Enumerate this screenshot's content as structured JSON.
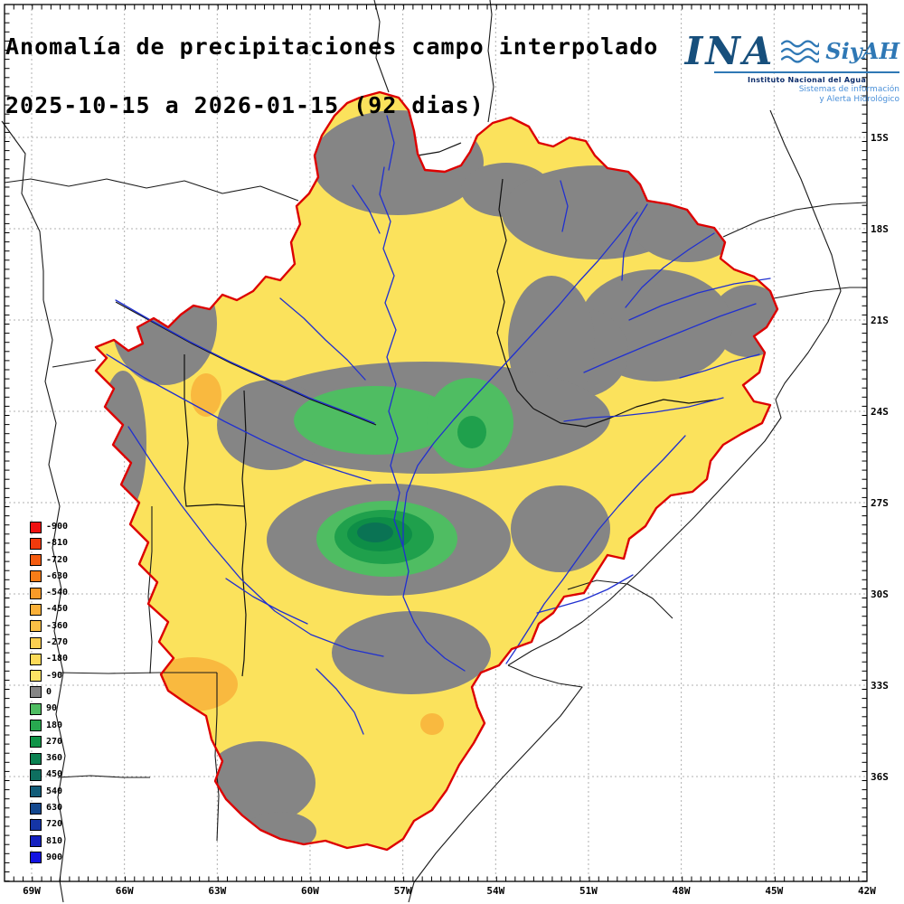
{
  "title": {
    "line1": "Anomalía de precipitaciones campo interpolado",
    "line2": "2025-10-15 a 2026-01-15 (92 dias)"
  },
  "logo": {
    "ina": "INA",
    "siyah": "SiyAH",
    "institute": "Instituto Nacional del Agua",
    "sub1": "Sistemas de información",
    "sub2": "y Alerta Hidrológico"
  },
  "axes": {
    "x_ticks": [
      "69W",
      "66W",
      "63W",
      "60W",
      "57W",
      "54W",
      "51W",
      "48W",
      "45W",
      "42W"
    ],
    "y_ticks": [
      "15S",
      "18S",
      "21S",
      "24S",
      "27S",
      "30S",
      "33S",
      "36S"
    ]
  },
  "legend": {
    "values": [
      "-900",
      "-810",
      "-720",
      "-630",
      "-540",
      "-450",
      "-360",
      "-270",
      "-180",
      "-90",
      "0",
      "90",
      "180",
      "270",
      "360",
      "450",
      "540",
      "630",
      "720",
      "810",
      "900"
    ],
    "colors": [
      "#ef1010",
      "#f23a0c",
      "#f55c10",
      "#f67d18",
      "#f89a28",
      "#fab038",
      "#fbc146",
      "#fccf50",
      "#fcda58",
      "#fbe465",
      "#858585",
      "#4fbd62",
      "#28a950",
      "#109448",
      "#0b8151",
      "#0e6f60",
      "#125d79",
      "#14488e",
      "#1535a6",
      "#1522c0",
      "#1212e0"
    ]
  },
  "colors": {
    "basin_outline": "#dd0000",
    "river": "#2030d0",
    "border": "#111111",
    "grid": "#b0b0b0",
    "map_yellow": "#fbe25c",
    "map_gray": "#858585",
    "map_green_light": "#4fbd62",
    "map_green": "#1fa04c",
    "map_green_dark": "#0e8e47",
    "map_teal": "#0a7354",
    "map_orange": "#f9b93f",
    "logo_blue_dark": "#174f7c",
    "logo_blue": "#2f78b5",
    "logo_navy": "#0d2d6b",
    "logo_light_blue": "#4a90d9"
  },
  "chart_data": {
    "type": "heatmap",
    "title": "Anomalía de precipitaciones campo interpolado",
    "subtitle": "2025-10-15 a 2026-01-15 (92 dias)",
    "x_ticks": [
      "69W",
      "66W",
      "63W",
      "60W",
      "57W",
      "54W",
      "51W",
      "48W",
      "45W",
      "42W"
    ],
    "y_ticks": [
      "15S",
      "18S",
      "21S",
      "24S",
      "27S",
      "30S",
      "33S",
      "36S"
    ],
    "levels": [
      -900,
      -810,
      -720,
      -630,
      -540,
      -450,
      -360,
      -270,
      -180,
      -90,
      0,
      90,
      180,
      270,
      360,
      450,
      540,
      630,
      720,
      810,
      900
    ],
    "level_colors": [
      "#ef1010",
      "#f23a0c",
      "#f55c10",
      "#f67d18",
      "#f89a28",
      "#fab038",
      "#fbc146",
      "#fccf50",
      "#fcda58",
      "#fbe465",
      "#858585",
      "#4fbd62",
      "#28a950",
      "#109448",
      "#0b8151",
      "#0e6f60",
      "#125d79",
      "#14488e",
      "#1535a6",
      "#1522c0",
      "#1212e0"
    ],
    "regions": [
      {
        "anomaly": "-180 a -90",
        "color": "#fbe25c",
        "extent": "la mayor parte de la cuenca"
      },
      {
        "anomaly": "-90 a 0",
        "color": "#858585",
        "extent": "norte, franja central cerca de 24S, este y parches del sur"
      },
      {
        "anomaly": "0 a 180",
        "color": "#4fbd62",
        "extent": "franja cerca de 24S y núcleo cerca de 57.5W 27.5S"
      },
      {
        "anomaly": "180 a 360",
        "color": "#0e8e47",
        "extent": "núcleo central del ojo verde"
      },
      {
        "anomaly": "-270 a -180",
        "color": "#f9b93f",
        "extent": "pequeñas manchas al oeste y suroeste"
      }
    ]
  }
}
